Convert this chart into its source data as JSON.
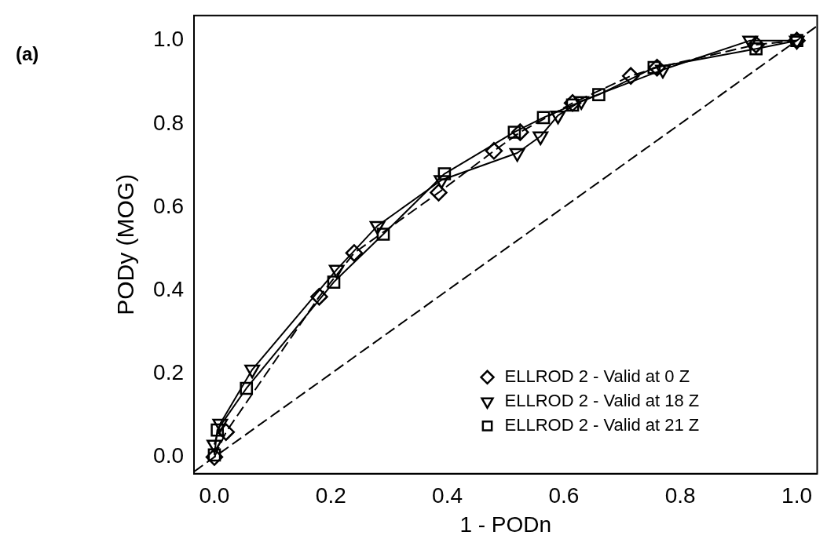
{
  "chart_data": {
    "type": "line",
    "xlabel": "1 - PODn",
    "ylabel": "PODy (MOG)",
    "annotations": [
      "(a)"
    ],
    "xlim": [
      -0.035,
      1.035
    ],
    "ylim": [
      -0.04,
      1.06
    ],
    "xticks": [
      {
        "value": 0,
        "label": "0.0"
      },
      {
        "value": 0.2,
        "label": "0.2"
      },
      {
        "value": 0.4,
        "label": "0.4"
      },
      {
        "value": 0.6,
        "label": "0.6"
      },
      {
        "value": 0.8,
        "label": "0.8"
      },
      {
        "value": 1,
        "label": "1.0"
      }
    ],
    "yticks": [
      {
        "value": 0,
        "label": "0.0"
      },
      {
        "value": 0.2,
        "label": "0.2"
      },
      {
        "value": 0.4,
        "label": "0.4"
      },
      {
        "value": 0.6,
        "label": "0.6"
      },
      {
        "value": 0.8,
        "label": "0.8"
      },
      {
        "value": 1,
        "label": "1.0"
      }
    ],
    "grid": false,
    "legend": "bottom right",
    "series": [
      {
        "name": "ELLROD 2 - Valid at 0 Z",
        "color": "#000000",
        "marker": "diamond",
        "line_style": "dashed",
        "x": [
          0,
          0.02,
          0.18,
          0.24,
          0.385,
          0.48,
          0.525,
          0.615,
          0.715,
          0.76,
          0.93,
          1
        ],
        "values": [
          0,
          0.06,
          0.385,
          0.49,
          0.635,
          0.735,
          0.78,
          0.85,
          0.915,
          0.935,
          0.99,
          1
        ]
      },
      {
        "name": "ELLROD 2 - Valid at 18 Z",
        "color": "#000000",
        "marker": "triangle",
        "line_style": "solid",
        "x": [
          0,
          0.01,
          0.065,
          0.21,
          0.28,
          0.39,
          0.52,
          0.56,
          0.59,
          0.63,
          0.77,
          0.92,
          1
        ],
        "values": [
          0.03,
          0.08,
          0.21,
          0.45,
          0.555,
          0.665,
          0.73,
          0.77,
          0.82,
          0.855,
          0.93,
          1,
          1
        ]
      },
      {
        "name": "ELLROD 2 - Valid at 21 Z",
        "color": "#000000",
        "marker": "square",
        "line_style": "solid",
        "x": [
          0,
          0.005,
          0.055,
          0.205,
          0.29,
          0.395,
          0.515,
          0.565,
          0.615,
          0.66,
          0.755,
          0.93,
          1
        ],
        "values": [
          0.005,
          0.065,
          0.165,
          0.42,
          0.535,
          0.68,
          0.78,
          0.815,
          0.845,
          0.87,
          0.935,
          0.98,
          1
        ]
      },
      {
        "color": "#000000",
        "marker": "none",
        "line_style": "dashed",
        "x": [
          -0.035,
          1.035
        ],
        "values": [
          -0.035,
          1.035
        ]
      }
    ]
  }
}
